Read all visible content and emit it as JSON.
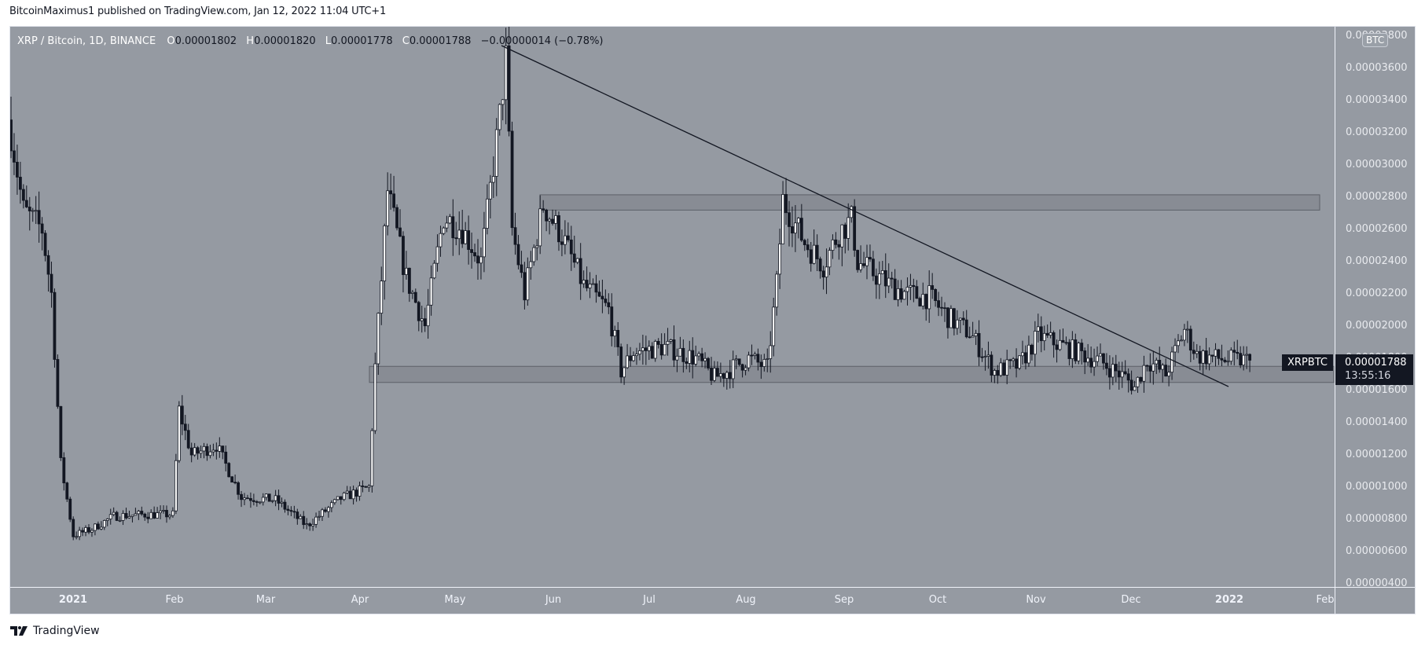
{
  "header": {
    "published_line": "BitcoinMaximus1 published on TradingView.com, Jan 12, 2022 11:04 UTC+1"
  },
  "legend": {
    "title": "XRP / Bitcoin, 1D, BINANCE",
    "open_label": "O",
    "open": "0.00001802",
    "high_label": "H",
    "high": "0.00001820",
    "low_label": "L",
    "low": "0.00001778",
    "close_label": "C",
    "close": "0.00001788",
    "change": "−0.00000014 (−0.78%)"
  },
  "price_axis": {
    "currency_badge": "BTC",
    "labels": [
      "0.00003800",
      "0.00003600",
      "0.00003400",
      "0.00003200",
      "0.00003000",
      "0.00002800",
      "0.00002600",
      "0.00002400",
      "0.00002200",
      "0.00002000",
      "0.00001800",
      "0.00001600",
      "0.00001400",
      "0.00001200",
      "0.00001000",
      "0.00000800",
      "0.00000600",
      "0.00000400"
    ]
  },
  "time_axis": {
    "labels": [
      {
        "text": "2021",
        "bold": true
      },
      {
        "text": "Feb",
        "bold": false
      },
      {
        "text": "Mar",
        "bold": false
      },
      {
        "text": "Apr",
        "bold": false
      },
      {
        "text": "May",
        "bold": false
      },
      {
        "text": "Jun",
        "bold": false
      },
      {
        "text": "Jul",
        "bold": false
      },
      {
        "text": "Aug",
        "bold": false
      },
      {
        "text": "Sep",
        "bold": false
      },
      {
        "text": "Oct",
        "bold": false
      },
      {
        "text": "Nov",
        "bold": false
      },
      {
        "text": "Dec",
        "bold": false
      },
      {
        "text": "2022",
        "bold": true
      },
      {
        "text": "Feb",
        "bold": false
      }
    ]
  },
  "last_price": {
    "symbol": "XRPBTC",
    "price": "0.00001788",
    "countdown": "13:55:16"
  },
  "branding": {
    "name": "TradingView"
  },
  "colors": {
    "background": "#959aa2",
    "up_candle": "#ffffff",
    "down_candle": "#131722",
    "zone_fill": "#868a92",
    "zone_border": "#5d6068",
    "trendline": "#131722"
  },
  "chart_data": {
    "type": "candlestick",
    "title": "XRP / Bitcoin, 1D, BINANCE",
    "xlabel": "",
    "ylabel": "BTC",
    "ylim": [
      4e-06,
      3.85e-05
    ],
    "x_range": [
      "2020-12-10",
      "2022-02-05"
    ],
    "grid": false,
    "close_path_waypoints_e6": [
      {
        "date": "2020-12-10",
        "close": 32.0
      },
      {
        "date": "2020-12-14",
        "close": 27.2
      },
      {
        "date": "2020-12-20",
        "close": 26.0
      },
      {
        "date": "2020-12-23",
        "close": 22.0
      },
      {
        "date": "2020-12-26",
        "close": 11.5
      },
      {
        "date": "2020-12-30",
        "close": 7.0
      },
      {
        "date": "2021-01-05",
        "close": 7.4
      },
      {
        "date": "2021-01-12",
        "close": 8.2
      },
      {
        "date": "2021-01-22",
        "close": 8.3
      },
      {
        "date": "2021-01-31",
        "close": 8.3
      },
      {
        "date": "2021-02-02",
        "close": 14.8
      },
      {
        "date": "2021-02-06",
        "close": 12.0
      },
      {
        "date": "2021-02-14",
        "close": 12.6
      },
      {
        "date": "2021-02-22",
        "close": 9.4
      },
      {
        "date": "2021-03-05",
        "close": 9.2
      },
      {
        "date": "2021-03-15",
        "close": 7.6
      },
      {
        "date": "2021-03-26",
        "close": 9.3
      },
      {
        "date": "2021-04-04",
        "close": 10.0
      },
      {
        "date": "2021-04-06",
        "close": 17.5
      },
      {
        "date": "2021-04-10",
        "close": 28.4
      },
      {
        "date": "2021-04-16",
        "close": 23.0
      },
      {
        "date": "2021-04-22",
        "close": 20.0
      },
      {
        "date": "2021-04-28",
        "close": 26.8
      },
      {
        "date": "2021-05-04",
        "close": 26.0
      },
      {
        "date": "2021-05-10",
        "close": 24.0
      },
      {
        "date": "2021-05-16",
        "close": 33.0
      },
      {
        "date": "2021-05-18",
        "close": 36.6
      },
      {
        "date": "2021-05-20",
        "close": 26.0
      },
      {
        "date": "2021-05-24",
        "close": 22.0
      },
      {
        "date": "2021-05-30",
        "close": 27.5
      },
      {
        "date": "2021-06-05",
        "close": 25.6
      },
      {
        "date": "2021-06-12",
        "close": 22.5
      },
      {
        "date": "2021-06-20",
        "close": 21.0
      },
      {
        "date": "2021-06-24",
        "close": 17.2
      },
      {
        "date": "2021-06-28",
        "close": 18.4
      },
      {
        "date": "2021-07-08",
        "close": 18.7
      },
      {
        "date": "2021-07-18",
        "close": 18.0
      },
      {
        "date": "2021-07-24",
        "close": 16.8
      },
      {
        "date": "2021-07-28",
        "close": 17.2
      },
      {
        "date": "2021-08-04",
        "close": 18.0
      },
      {
        "date": "2021-08-10",
        "close": 17.4
      },
      {
        "date": "2021-08-13",
        "close": 22.6
      },
      {
        "date": "2021-08-15",
        "close": 27.8
      },
      {
        "date": "2021-08-22",
        "close": 25.2
      },
      {
        "date": "2021-08-28",
        "close": 23.8
      },
      {
        "date": "2021-09-02",
        "close": 25.8
      },
      {
        "date": "2021-09-06",
        "close": 26.6
      },
      {
        "date": "2021-09-08",
        "close": 24.0
      },
      {
        "date": "2021-09-18",
        "close": 22.6
      },
      {
        "date": "2021-09-24",
        "close": 22.0
      },
      {
        "date": "2021-10-01",
        "close": 21.8
      },
      {
        "date": "2021-10-08",
        "close": 20.4
      },
      {
        "date": "2021-10-14",
        "close": 19.6
      },
      {
        "date": "2021-10-22",
        "close": 17.2
      },
      {
        "date": "2021-10-30",
        "close": 17.6
      },
      {
        "date": "2021-11-05",
        "close": 19.4
      },
      {
        "date": "2021-11-15",
        "close": 18.6
      },
      {
        "date": "2021-11-25",
        "close": 17.8
      },
      {
        "date": "2021-12-03",
        "close": 16.8
      },
      {
        "date": "2021-12-06",
        "close": 16.2
      },
      {
        "date": "2021-12-10",
        "close": 17.9
      },
      {
        "date": "2021-12-16",
        "close": 17.0
      },
      {
        "date": "2021-12-22",
        "close": 19.8
      },
      {
        "date": "2021-12-26",
        "close": 18.2
      },
      {
        "date": "2022-01-05",
        "close": 17.9
      },
      {
        "date": "2022-01-12",
        "close": 17.88
      }
    ],
    "annotations": {
      "resistance_zone_e6": [
        27.2,
        28.15
      ],
      "support_zone_e6": [
        16.5,
        17.5
      ],
      "descending_trendline": {
        "start": {
          "date": "2021-05-18",
          "price_e6": 37.2
        },
        "end": {
          "date": "2022-01-06",
          "price_e6": 16.2
        }
      }
    },
    "last_price_label": {
      "symbol": "XRPBTC",
      "value": 1.788e-05,
      "countdown": "13:55:16"
    }
  }
}
